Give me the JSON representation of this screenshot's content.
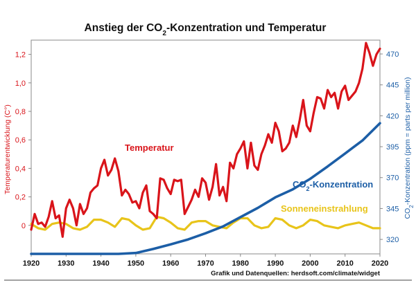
{
  "chart_data": {
    "type": "line",
    "title": "Anstieg der CO₂-Konzentration und Temperatur",
    "title_parts": {
      "pre": "Anstieg der CO",
      "sub": "2",
      "post": "-Konzentration und Temperatur"
    },
    "source": "Grafik und Datenquellen: herdsoft.com/climate/widget",
    "x_ticks": [
      1920,
      1930,
      1940,
      1950,
      1960,
      1970,
      1980,
      1990,
      2000,
      2010,
      2020
    ],
    "xlim": [
      1920,
      2020
    ],
    "left_axis": {
      "label": "Temperaturentwicklung (C°)",
      "ylim": [
        -0.2,
        1.3
      ],
      "ticks": [
        0,
        0.2,
        0.4,
        0.6,
        0.8,
        1.0,
        1.2
      ],
      "tick_labels": [
        "0",
        "0,2",
        "0,4",
        "0,6",
        "0,8",
        "1,0",
        "1,2"
      ]
    },
    "right_axis": {
      "label": "CO₂-Konzentration (ppm = parts per million)",
      "label_parts": {
        "pre": "CO",
        "sub": "2",
        "post": "-Konzentration (ppm = parts per million)"
      },
      "ylim": [
        308.3,
        481.2
      ],
      "ticks": [
        320,
        345,
        370,
        395,
        420,
        445,
        470
      ],
      "tick_labels": [
        "320",
        "345",
        "370",
        "395",
        "420",
        "445",
        "470"
      ]
    },
    "series": [
      {
        "name": "Temperatur",
        "axis": "left",
        "color": "#d9141a",
        "x": [
          1920,
          1921,
          1922,
          1923,
          1924,
          1925,
          1926,
          1927,
          1928,
          1929,
          1930,
          1931,
          1932,
          1933,
          1934,
          1935,
          1936,
          1937,
          1938,
          1939,
          1940,
          1941,
          1942,
          1943,
          1944,
          1945,
          1946,
          1947,
          1948,
          1949,
          1950,
          1951,
          1952,
          1953,
          1954,
          1955,
          1956,
          1957,
          1958,
          1959,
          1960,
          1961,
          1962,
          1963,
          1964,
          1965,
          1966,
          1967,
          1968,
          1969,
          1970,
          1971,
          1972,
          1973,
          1974,
          1975,
          1976,
          1977,
          1978,
          1979,
          1980,
          1981,
          1982,
          1983,
          1984,
          1985,
          1986,
          1987,
          1988,
          1989,
          1990,
          1991,
          1992,
          1993,
          1994,
          1995,
          1996,
          1997,
          1998,
          1999,
          2000,
          2001,
          2002,
          2003,
          2004,
          2005,
          2006,
          2007,
          2008,
          2009,
          2010,
          2011,
          2012,
          2013,
          2014,
          2015,
          2016,
          2017,
          2018,
          2019,
          2020
        ],
        "values": [
          -0.03,
          0.08,
          0.01,
          0.02,
          -0.01,
          0.06,
          0.17,
          0.05,
          0.07,
          -0.08,
          0.12,
          0.18,
          0.12,
          0.0,
          0.15,
          0.08,
          0.12,
          0.23,
          0.26,
          0.28,
          0.4,
          0.46,
          0.35,
          0.39,
          0.47,
          0.38,
          0.21,
          0.25,
          0.22,
          0.16,
          0.17,
          0.12,
          0.23,
          0.28,
          0.1,
          0.08,
          0.05,
          0.33,
          0.32,
          0.26,
          0.22,
          0.32,
          0.31,
          0.32,
          0.08,
          0.13,
          0.18,
          0.25,
          0.2,
          0.33,
          0.3,
          0.18,
          0.27,
          0.43,
          0.21,
          0.27,
          0.17,
          0.44,
          0.4,
          0.5,
          0.54,
          0.59,
          0.4,
          0.58,
          0.42,
          0.39,
          0.5,
          0.56,
          0.64,
          0.58,
          0.72,
          0.66,
          0.52,
          0.54,
          0.58,
          0.7,
          0.62,
          0.74,
          0.88,
          0.7,
          0.66,
          0.79,
          0.9,
          0.89,
          0.82,
          0.95,
          0.9,
          0.93,
          0.82,
          0.94,
          0.98,
          0.88,
          0.91,
          0.94,
          1.0,
          1.1,
          1.28,
          1.21,
          1.12,
          1.2,
          1.24
        ]
      },
      {
        "name": "CO₂-Konzentration",
        "label_parts": {
          "pre": "CO",
          "sub": "2",
          "post": "-Konzentration"
        },
        "axis": "right",
        "color": "#1c5ea6",
        "x": [
          1920,
          1925,
          1930,
          1935,
          1940,
          1945,
          1950,
          1955,
          1960,
          1965,
          1970,
          1975,
          1980,
          1985,
          1990,
          1995,
          2000,
          2005,
          2010,
          2015,
          2020
        ],
        "values": [
          303.0,
          304.8,
          305.9,
          307.4,
          308.2,
          308.0,
          309.0,
          312.3,
          316.0,
          320.0,
          325.0,
          330.5,
          338.0,
          345.5,
          354.0,
          360.5,
          369.0,
          379.0,
          389.5,
          400.0,
          414.0
        ]
      },
      {
        "name": "Sonneneinstrahlung",
        "axis": "left",
        "color": "#e8c41a",
        "x": [
          1920,
          1922,
          1924,
          1926,
          1928,
          1930,
          1932,
          1934,
          1936,
          1938,
          1940,
          1942,
          1944,
          1946,
          1948,
          1950,
          1952,
          1954,
          1956,
          1958,
          1960,
          1962,
          1964,
          1966,
          1968,
          1970,
          1972,
          1974,
          1976,
          1978,
          1980,
          1982,
          1984,
          1986,
          1988,
          1990,
          1992,
          1994,
          1996,
          1998,
          2000,
          2002,
          2004,
          2006,
          2008,
          2010,
          2012,
          2014,
          2016,
          2018,
          2020
        ],
        "values": [
          0.01,
          -0.02,
          -0.03,
          0.01,
          0.02,
          0.01,
          -0.02,
          -0.03,
          -0.01,
          0.04,
          0.04,
          0.02,
          -0.01,
          0.05,
          0.04,
          0.0,
          -0.03,
          -0.02,
          0.06,
          0.05,
          0.02,
          -0.02,
          -0.03,
          0.02,
          0.03,
          0.03,
          0.0,
          -0.01,
          -0.02,
          0.02,
          0.05,
          0.05,
          0.0,
          -0.02,
          -0.01,
          0.05,
          0.04,
          0.0,
          -0.02,
          0.0,
          0.04,
          0.03,
          0.0,
          -0.01,
          -0.02,
          0.0,
          0.01,
          0.02,
          0.0,
          -0.02,
          -0.02
        ]
      }
    ]
  }
}
